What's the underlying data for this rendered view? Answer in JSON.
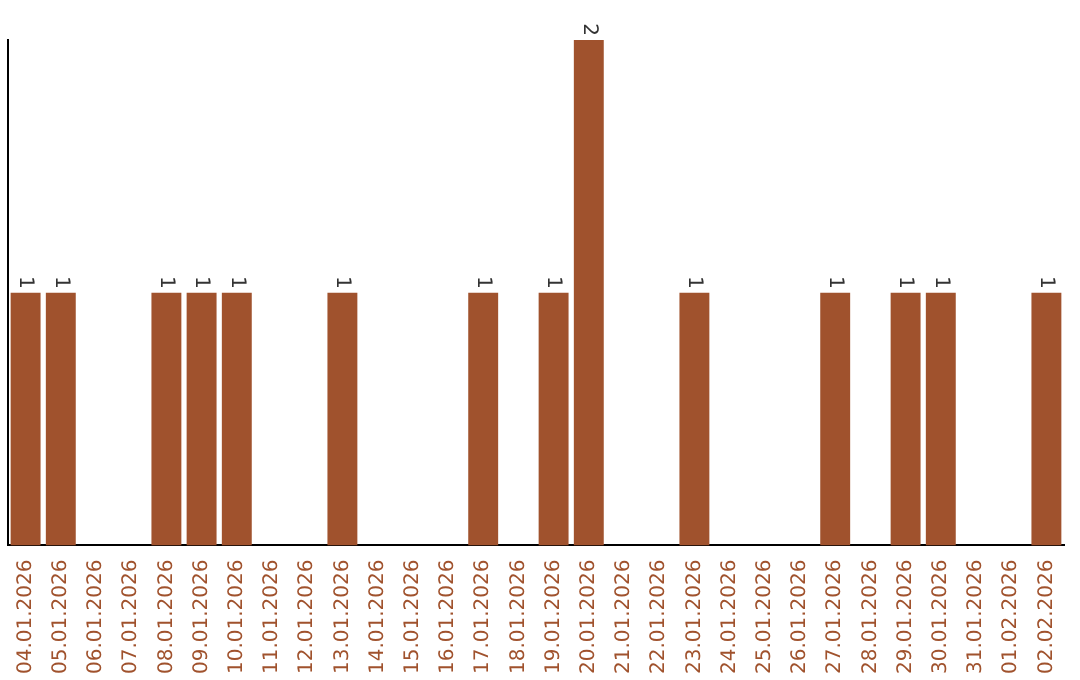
{
  "chart_data": {
    "type": "bar",
    "categories": [
      "04.01.2026",
      "05.01.2026",
      "06.01.2026",
      "07.01.2026",
      "08.01.2026",
      "09.01.2026",
      "10.01.2026",
      "11.01.2026",
      "12.01.2026",
      "13.01.2026",
      "14.01.2026",
      "15.01.2026",
      "16.01.2026",
      "17.01.2026",
      "18.01.2026",
      "19.01.2026",
      "20.01.2026",
      "21.01.2026",
      "22.01.2026",
      "23.01.2026",
      "24.01.2026",
      "25.01.2026",
      "26.01.2026",
      "27.01.2026",
      "28.01.2026",
      "29.01.2026",
      "30.01.2026",
      "31.01.2026",
      "01.02.2026",
      "02.02.2026"
    ],
    "values": [
      1,
      1,
      0,
      0,
      1,
      1,
      1,
      0,
      0,
      1,
      0,
      0,
      0,
      1,
      0,
      1,
      2,
      0,
      0,
      1,
      0,
      0,
      0,
      1,
      0,
      1,
      1,
      0,
      0,
      1
    ],
    "value_labels": [
      "1",
      "1",
      null,
      null,
      "1",
      "1",
      "1",
      null,
      null,
      "1",
      null,
      null,
      null,
      "1",
      null,
      "1",
      "2",
      null,
      null,
      "1",
      null,
      null,
      null,
      "1",
      null,
      "1",
      "1",
      null,
      null,
      "1"
    ],
    "color": "#a0522d",
    "grid": false,
    "legend": false,
    "tick_labels": "x"
  }
}
